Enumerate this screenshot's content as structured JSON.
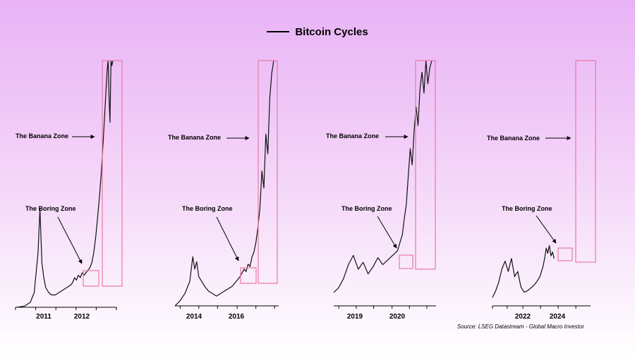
{
  "chart_data": [
    {
      "type": "line",
      "title": "Bitcoin Cycles",
      "xticks": [
        {
          "label": "2011",
          "x": 0.28
        },
        {
          "label": "2012",
          "x": 0.6
        }
      ],
      "tickmarks": [
        0.0,
        0.2,
        0.4,
        0.6,
        0.8,
        1.0
      ],
      "annotations": {
        "banana": "The Banana Zone",
        "boring": "The Boring Zone"
      },
      "series": [
        {
          "x": [
            0.0,
            0.08,
            0.14,
            0.18,
            0.2,
            0.22,
            0.24,
            0.26,
            0.28,
            0.3,
            0.33,
            0.36,
            0.4,
            0.44,
            0.48,
            0.52,
            0.56,
            0.58,
            0.6,
            0.62,
            0.64,
            0.66,
            0.68,
            0.7,
            0.72,
            0.74,
            0.76,
            0.78,
            0.8,
            0.82,
            0.84,
            0.86,
            0.88,
            0.9,
            0.92,
            0.94,
            0.95,
            0.96,
            0.97,
            0.98,
            0.99,
            1.0
          ],
          "values": [
            0.0,
            0.005,
            0.02,
            0.06,
            0.14,
            0.22,
            0.4,
            0.18,
            0.12,
            0.08,
            0.06,
            0.05,
            0.05,
            0.06,
            0.07,
            0.08,
            0.09,
            0.1,
            0.12,
            0.11,
            0.13,
            0.12,
            0.14,
            0.13,
            0.14,
            0.15,
            0.16,
            0.18,
            0.22,
            0.28,
            0.36,
            0.45,
            0.55,
            0.68,
            0.82,
            0.96,
            1.0,
            0.85,
            0.75,
            1.0,
            0.98,
            1.0
          ]
        }
      ]
    },
    {
      "type": "line",
      "xticks": [
        {
          "label": "2014",
          "x": 0.23
        },
        {
          "label": "2016",
          "x": 0.6
        }
      ],
      "tickmarks": [
        0.05,
        0.23,
        0.41,
        0.6,
        0.78,
        0.96
      ],
      "annotations": {
        "banana": "The Banana Zone",
        "boring": "The Boring Zone"
      },
      "series": [
        {
          "x": [
            0.0,
            0.05,
            0.1,
            0.15,
            0.18,
            0.2,
            0.22,
            0.24,
            0.27,
            0.3,
            0.34,
            0.38,
            0.42,
            0.46,
            0.5,
            0.54,
            0.58,
            0.62,
            0.66,
            0.7,
            0.72,
            0.74,
            0.76,
            0.78,
            0.8,
            0.82,
            0.84,
            0.86,
            0.88,
            0.9,
            0.92,
            0.94,
            0.96,
            0.98,
            1.0
          ],
          "values": [
            0.0,
            0.02,
            0.05,
            0.1,
            0.2,
            0.15,
            0.18,
            0.12,
            0.1,
            0.08,
            0.06,
            0.05,
            0.04,
            0.05,
            0.06,
            0.07,
            0.08,
            0.1,
            0.12,
            0.15,
            0.14,
            0.17,
            0.16,
            0.2,
            0.22,
            0.26,
            0.32,
            0.4,
            0.55,
            0.48,
            0.7,
            0.62,
            0.85,
            0.95,
            1.0
          ]
        }
      ]
    },
    {
      "type": "line",
      "xticks": [
        {
          "label": "2019",
          "x": 0.22
        },
        {
          "label": "2020",
          "x": 0.57
        }
      ],
      "tickmarks": [
        0.05,
        0.22,
        0.39,
        0.57,
        0.74,
        0.91
      ],
      "annotations": {
        "banana": "The Banana Zone",
        "boring": "The Boring Zone"
      },
      "series": [
        {
          "x": [
            0.0,
            0.05,
            0.1,
            0.15,
            0.2,
            0.25,
            0.3,
            0.35,
            0.4,
            0.45,
            0.5,
            0.55,
            0.6,
            0.65,
            0.7,
            0.72,
            0.74,
            0.76,
            0.78,
            0.8,
            0.82,
            0.84,
            0.86,
            0.88,
            0.9,
            0.92,
            0.94,
            0.96,
            0.98,
            1.0
          ],
          "values": [
            0.0,
            0.02,
            0.06,
            0.12,
            0.16,
            0.1,
            0.13,
            0.08,
            0.11,
            0.15,
            0.12,
            0.14,
            0.16,
            0.18,
            0.25,
            0.32,
            0.38,
            0.5,
            0.62,
            0.55,
            0.7,
            0.8,
            0.72,
            0.88,
            0.95,
            0.86,
            1.0,
            0.9,
            0.97,
            1.0
          ]
        }
      ]
    },
    {
      "type": "line",
      "xticks": [
        {
          "label": "2022",
          "x": 0.31
        },
        {
          "label": "2024",
          "x": 0.67
        }
      ],
      "tickmarks": [
        0.0,
        0.15,
        0.31,
        0.49,
        0.67,
        0.85
      ],
      "annotations": {
        "banana": "The Banana Zone",
        "boring": "The Boring Zone"
      },
      "series": [
        {
          "x": [
            0.0,
            0.04,
            0.08,
            0.12,
            0.16,
            0.2,
            0.24,
            0.28,
            0.32,
            0.36,
            0.4,
            0.44,
            0.48,
            0.52,
            0.56,
            0.6,
            0.64,
            0.66,
            0.68,
            0.7,
            0.72,
            0.74,
            0.76,
            0.78
          ],
          "values": [
            0.0,
            0.05,
            0.12,
            0.22,
            0.28,
            0.2,
            0.3,
            0.16,
            0.2,
            0.08,
            0.04,
            0.05,
            0.07,
            0.09,
            0.12,
            0.16,
            0.24,
            0.3,
            0.38,
            0.34,
            0.4,
            0.32,
            0.35,
            0.3
          ]
        }
      ]
    }
  ],
  "source": "Source: LSEG Datastream - Global Macro Investor",
  "colors": {
    "line": "#111111",
    "zone_box": "#e87a9f",
    "arrow": "#000000"
  }
}
